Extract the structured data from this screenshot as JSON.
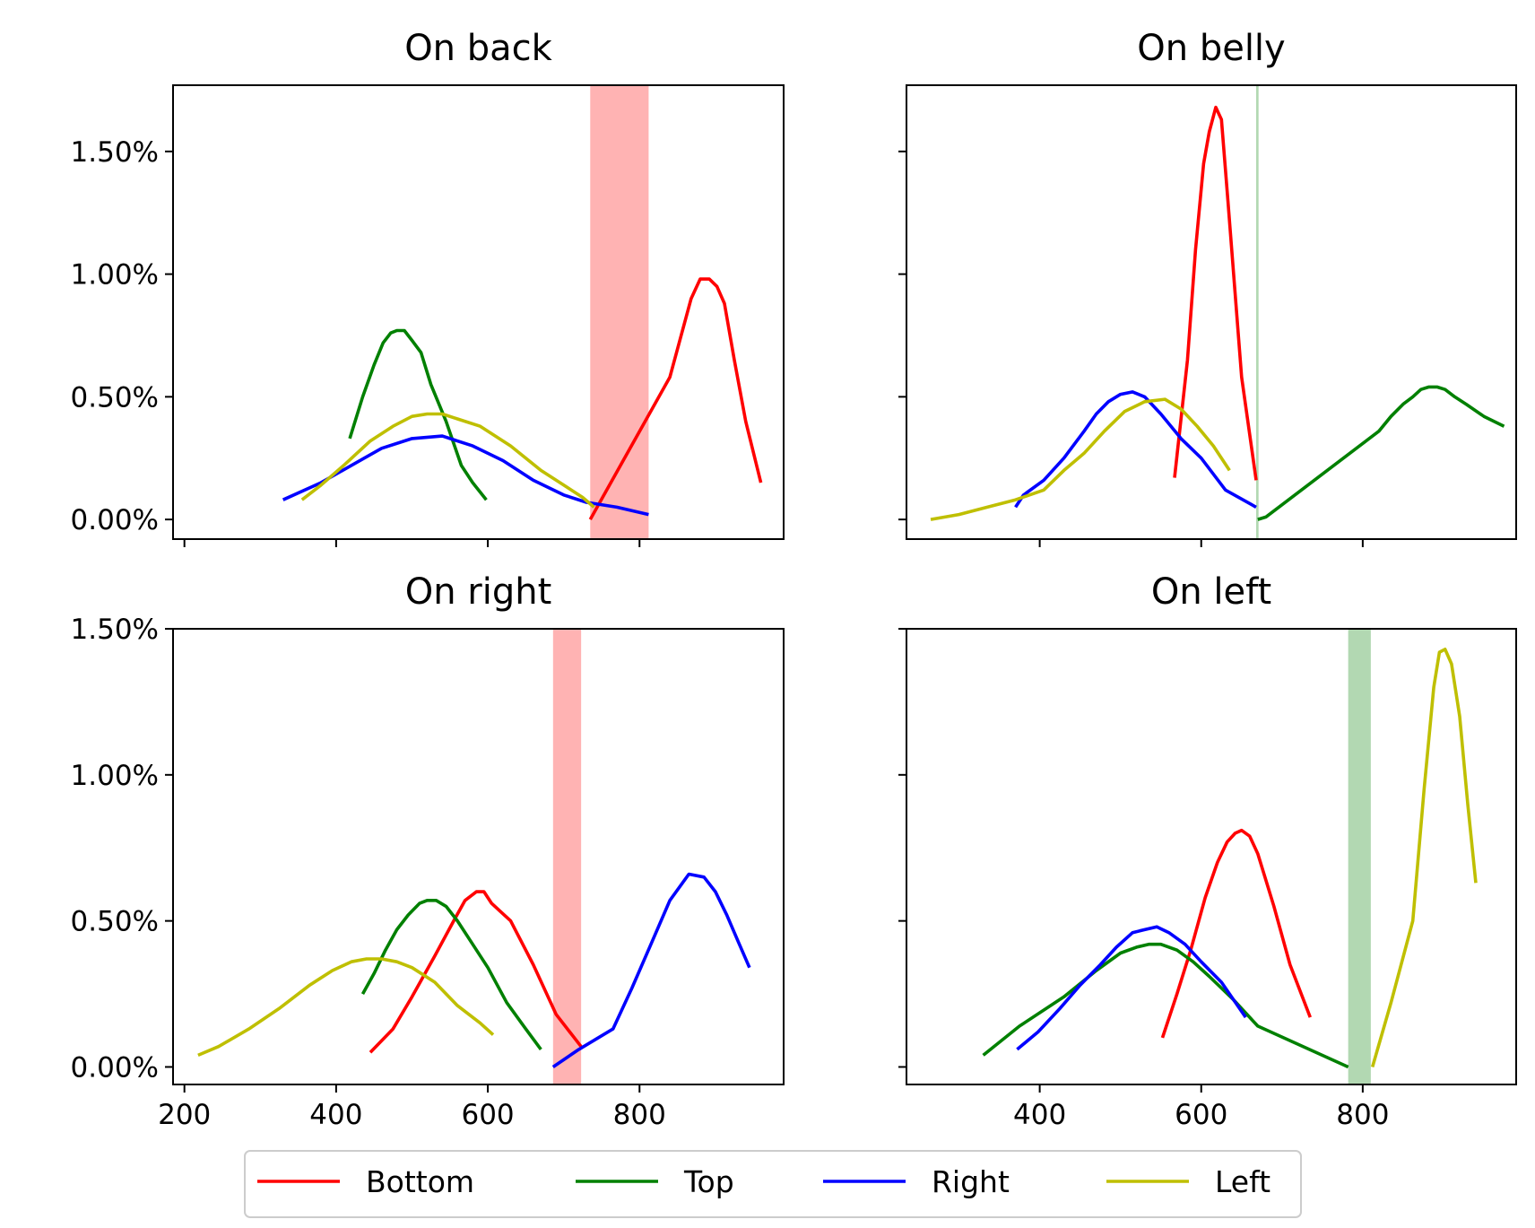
{
  "series_styles": [
    {
      "key": "bottom",
      "color": "#ff0000"
    },
    {
      "key": "top",
      "color": "#008000"
    },
    {
      "key": "right",
      "color": "#0000ff"
    },
    {
      "key": "left",
      "color": "#bfbf00"
    }
  ],
  "band_colors": {
    "red": "#ffb3b3",
    "green": "#b2d8b2"
  },
  "legend": {
    "placement": "bottom-center",
    "items": [
      "Bottom",
      "Top",
      "Right",
      "Left"
    ]
  },
  "chart_data": [
    {
      "type": "line",
      "title": "On back",
      "xlim": [
        185,
        990
      ],
      "ylim": [
        -0.08,
        1.77
      ],
      "xticks": [
        200,
        400,
        600,
        800
      ],
      "yticks": [
        0,
        0.5,
        1.0,
        1.5
      ],
      "ytick_labels": [
        "0.00%",
        "0.50%",
        "1.00%",
        "1.50%"
      ],
      "show_xtick_labels": false,
      "show_ytick_labels": true,
      "band": {
        "x0": 735,
        "x1": 812,
        "color": "red"
      },
      "series": [
        {
          "name": "Bottom",
          "x": [
            735,
            840,
            868,
            880,
            892,
            902,
            912,
            925,
            940,
            960
          ],
          "y": [
            0.0,
            0.58,
            0.9,
            0.98,
            0.98,
            0.95,
            0.88,
            0.65,
            0.4,
            0.15
          ]
        },
        {
          "name": "Top",
          "x": [
            418,
            435,
            450,
            462,
            472,
            480,
            490,
            500,
            512,
            525,
            545,
            565,
            580,
            598
          ],
          "y": [
            0.33,
            0.5,
            0.63,
            0.72,
            0.76,
            0.77,
            0.77,
            0.73,
            0.68,
            0.55,
            0.4,
            0.22,
            0.15,
            0.08
          ]
        },
        {
          "name": "Right",
          "x": [
            330,
            380,
            420,
            460,
            500,
            540,
            580,
            620,
            660,
            700,
            730,
            770,
            812
          ],
          "y": [
            0.08,
            0.15,
            0.22,
            0.29,
            0.33,
            0.34,
            0.3,
            0.24,
            0.16,
            0.1,
            0.07,
            0.05,
            0.02
          ]
        },
        {
          "name": "Left",
          "x": [
            355,
            380,
            410,
            445,
            475,
            500,
            520,
            540,
            560,
            590,
            630,
            670,
            700,
            725,
            740
          ],
          "y": [
            0.08,
            0.14,
            0.22,
            0.32,
            0.38,
            0.42,
            0.43,
            0.43,
            0.41,
            0.38,
            0.3,
            0.2,
            0.14,
            0.09,
            0.05
          ]
        }
      ]
    },
    {
      "type": "line",
      "title": "On belly",
      "xlim": [
        235,
        990
      ],
      "ylim": [
        -0.08,
        1.77
      ],
      "xticks": [
        400,
        600,
        800
      ],
      "yticks": [
        0,
        0.5,
        1.0,
        1.5
      ],
      "ytick_labels": [
        "0.00%",
        "0.50%",
        "1.00%",
        "1.50%"
      ],
      "show_xtick_labels": false,
      "show_ytick_labels": false,
      "band": {
        "x0": 668,
        "x1": 671,
        "color": "green"
      },
      "series": [
        {
          "name": "Bottom",
          "x": [
            567,
            583,
            593,
            603,
            610,
            618,
            625,
            633,
            650,
            668
          ],
          "y": [
            0.17,
            0.65,
            1.1,
            1.45,
            1.58,
            1.68,
            1.63,
            1.3,
            0.58,
            0.16
          ]
        },
        {
          "name": "Top",
          "x": [
            670,
            680,
            820,
            835,
            850,
            862,
            872,
            882,
            892,
            902,
            914,
            928,
            950,
            975
          ],
          "y": [
            0.0,
            0.01,
            0.36,
            0.42,
            0.47,
            0.5,
            0.53,
            0.54,
            0.54,
            0.53,
            0.5,
            0.47,
            0.42,
            0.38
          ]
        },
        {
          "name": "Right",
          "x": [
            370,
            380,
            405,
            430,
            455,
            470,
            485,
            500,
            515,
            530,
            550,
            575,
            600,
            630,
            668
          ],
          "y": [
            0.05,
            0.1,
            0.16,
            0.25,
            0.36,
            0.43,
            0.48,
            0.51,
            0.52,
            0.5,
            0.43,
            0.33,
            0.25,
            0.12,
            0.05
          ]
        },
        {
          "name": "Left",
          "x": [
            265,
            300,
            335,
            370,
            405,
            430,
            455,
            480,
            505,
            530,
            555,
            575,
            595,
            615,
            635
          ],
          "y": [
            0.0,
            0.02,
            0.05,
            0.08,
            0.12,
            0.2,
            0.27,
            0.36,
            0.44,
            0.48,
            0.49,
            0.45,
            0.38,
            0.3,
            0.2
          ]
        }
      ]
    },
    {
      "type": "line",
      "title": "On right",
      "xlim": [
        185,
        990
      ],
      "ylim": [
        -0.06,
        1.5
      ],
      "xticks": [
        200,
        400,
        600,
        800
      ],
      "xtick_labels": [
        "200",
        "400",
        "600",
        "800"
      ],
      "yticks": [
        0,
        0.5,
        1.0,
        1.5
      ],
      "ytick_labels": [
        "0.00%",
        "0.50%",
        "1.00%",
        "1.50%"
      ],
      "show_xtick_labels": true,
      "show_ytick_labels": true,
      "band": {
        "x0": 686,
        "x1": 723,
        "color": "red"
      },
      "series": [
        {
          "name": "Bottom",
          "x": [
            445,
            475,
            500,
            530,
            555,
            570,
            585,
            595,
            605,
            630,
            660,
            690,
            723
          ],
          "y": [
            0.05,
            0.13,
            0.24,
            0.38,
            0.5,
            0.57,
            0.6,
            0.6,
            0.56,
            0.5,
            0.35,
            0.18,
            0.07
          ]
        },
        {
          "name": "Top",
          "x": [
            435,
            450,
            465,
            480,
            495,
            510,
            520,
            532,
            545,
            560,
            580,
            600,
            625,
            650,
            670
          ],
          "y": [
            0.25,
            0.32,
            0.4,
            0.47,
            0.52,
            0.56,
            0.57,
            0.57,
            0.55,
            0.5,
            0.42,
            0.34,
            0.22,
            0.13,
            0.06
          ]
        },
        {
          "name": "Right",
          "x": [
            686,
            720,
            765,
            790,
            815,
            840,
            865,
            885,
            900,
            915,
            930,
            945
          ],
          "y": [
            0.0,
            0.06,
            0.13,
            0.27,
            0.42,
            0.57,
            0.66,
            0.65,
            0.6,
            0.52,
            0.43,
            0.34
          ]
        },
        {
          "name": "Left",
          "x": [
            218,
            245,
            285,
            325,
            365,
            395,
            420,
            440,
            460,
            480,
            500,
            530,
            560,
            590,
            607
          ],
          "y": [
            0.04,
            0.07,
            0.13,
            0.2,
            0.28,
            0.33,
            0.36,
            0.37,
            0.37,
            0.36,
            0.34,
            0.29,
            0.21,
            0.15,
            0.11
          ]
        }
      ]
    },
    {
      "type": "line",
      "title": "On left",
      "xlim": [
        235,
        990
      ],
      "ylim": [
        -0.06,
        1.5
      ],
      "xticks": [
        400,
        600,
        800
      ],
      "xtick_labels": [
        "400",
        "600",
        "800"
      ],
      "yticks": [
        0,
        0.5,
        1.0,
        1.5
      ],
      "ytick_labels": [
        "0.00%",
        "0.50%",
        "1.00%",
        "1.50%"
      ],
      "show_xtick_labels": true,
      "show_ytick_labels": false,
      "band": {
        "x0": 782,
        "x1": 810,
        "color": "green"
      },
      "series": [
        {
          "name": "Bottom",
          "x": [
            552,
            570,
            587,
            605,
            620,
            632,
            642,
            650,
            660,
            670,
            690,
            710,
            735
          ],
          "y": [
            0.1,
            0.25,
            0.4,
            0.58,
            0.7,
            0.77,
            0.8,
            0.81,
            0.79,
            0.73,
            0.55,
            0.35,
            0.17
          ]
        },
        {
          "name": "Top",
          "x": [
            330,
            375,
            430,
            470,
            500,
            520,
            535,
            550,
            570,
            590,
            610,
            640,
            670,
            782
          ],
          "y": [
            0.04,
            0.14,
            0.24,
            0.33,
            0.39,
            0.41,
            0.42,
            0.42,
            0.4,
            0.36,
            0.31,
            0.23,
            0.14,
            0.0
          ]
        },
        {
          "name": "Right",
          "x": [
            372,
            398,
            425,
            450,
            475,
            495,
            515,
            530,
            545,
            560,
            580,
            600,
            625,
            655
          ],
          "y": [
            0.06,
            0.12,
            0.2,
            0.28,
            0.35,
            0.41,
            0.46,
            0.47,
            0.48,
            0.46,
            0.42,
            0.36,
            0.29,
            0.17
          ]
        },
        {
          "name": "Left",
          "x": [
            812,
            835,
            862,
            876,
            888,
            895,
            902,
            910,
            920,
            930,
            940
          ],
          "y": [
            0.0,
            0.22,
            0.5,
            0.95,
            1.3,
            1.42,
            1.43,
            1.38,
            1.2,
            0.9,
            0.63
          ]
        }
      ]
    }
  ]
}
